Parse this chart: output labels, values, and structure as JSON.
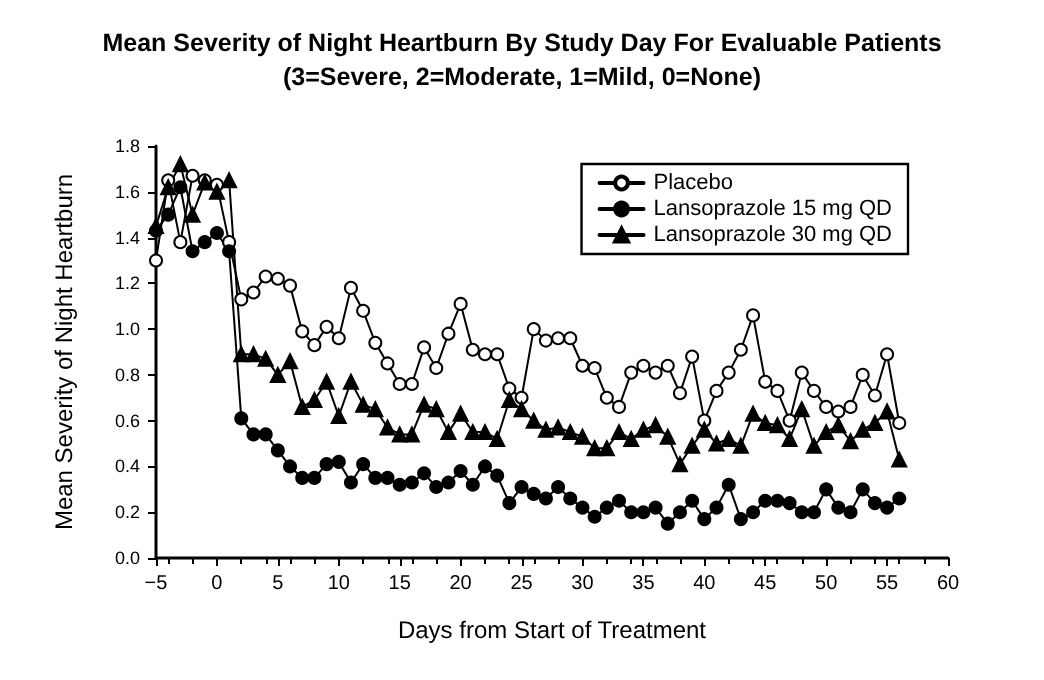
{
  "chart_data": {
    "type": "line",
    "title": "Mean Severity of Night Heartburn By Study Day For Evaluable Patients",
    "subtitle": "(3=Severe, 2=Moderate, 1=Mild, 0=None)",
    "xlabel": "Days from Start of Treatment",
    "ylabel": "Mean Severity of Night Heartburn",
    "x": [
      -5,
      -4,
      -3,
      -2,
      -1,
      0,
      1,
      2,
      3,
      4,
      5,
      6,
      7,
      8,
      9,
      10,
      11,
      12,
      13,
      14,
      15,
      16,
      17,
      18,
      19,
      20,
      21,
      22,
      23,
      24,
      25,
      26,
      27,
      28,
      29,
      30,
      31,
      32,
      33,
      34,
      35,
      36,
      37,
      38,
      39,
      40,
      41,
      42,
      43,
      44,
      45,
      46,
      47,
      48,
      49,
      50,
      51,
      52,
      53,
      54,
      55,
      56
    ],
    "series": [
      {
        "name": "Placebo",
        "color": "#000000",
        "marker": "circle",
        "values": [
          1.3,
          1.65,
          1.38,
          1.67,
          1.65,
          1.63,
          1.38,
          1.13,
          1.16,
          1.23,
          1.22,
          1.19,
          0.99,
          0.93,
          1.01,
          0.96,
          1.18,
          1.08,
          0.94,
          0.85,
          0.76,
          0.76,
          0.92,
          0.83,
          0.98,
          1.11,
          0.91,
          0.89,
          0.89,
          0.74,
          0.7,
          1.0,
          0.95,
          0.96,
          0.96,
          0.84,
          0.83,
          0.7,
          0.66,
          0.81,
          0.84,
          0.81,
          0.84,
          0.72,
          0.88,
          0.6,
          0.73,
          0.81,
          0.91,
          1.06,
          0.77,
          0.73,
          0.6,
          0.81,
          0.73,
          0.66,
          0.64,
          0.66,
          0.8,
          0.71,
          0.89,
          0.59
        ]
      },
      {
        "name": "Lansoprazole 15 mg QD",
        "color": "#000000",
        "marker": "circle",
        "values": [
          1.43,
          1.5,
          1.62,
          1.34,
          1.38,
          1.42,
          1.34,
          0.61,
          0.54,
          0.54,
          0.47,
          0.4,
          0.35,
          0.35,
          0.41,
          0.42,
          0.33,
          0.41,
          0.35,
          0.35,
          0.32,
          0.33,
          0.37,
          0.31,
          0.33,
          0.38,
          0.32,
          0.4,
          0.36,
          0.24,
          0.31,
          0.28,
          0.26,
          0.31,
          0.26,
          0.22,
          0.18,
          0.22,
          0.25,
          0.2,
          0.2,
          0.22,
          0.15,
          0.2,
          0.25,
          0.17,
          0.22,
          0.32,
          0.17,
          0.2,
          0.25,
          0.25,
          0.24,
          0.2,
          0.2,
          0.3,
          0.22,
          0.2,
          0.3,
          0.24,
          0.22,
          0.26
        ]
      },
      {
        "name": "Lansoprazole 30 mg QD",
        "color": "#000000",
        "marker": "triangle",
        "values": [
          1.45,
          1.62,
          1.72,
          1.5,
          1.64,
          1.6,
          1.65,
          0.89,
          0.89,
          0.87,
          0.8,
          0.86,
          0.66,
          0.69,
          0.77,
          0.62,
          0.77,
          0.67,
          0.65,
          0.57,
          0.54,
          0.54,
          0.67,
          0.65,
          0.55,
          0.63,
          0.55,
          0.55,
          0.52,
          0.69,
          0.65,
          0.6,
          0.56,
          0.57,
          0.55,
          0.53,
          0.48,
          0.48,
          0.55,
          0.52,
          0.56,
          0.58,
          0.53,
          0.41,
          0.49,
          0.56,
          0.5,
          0.52,
          0.49,
          0.63,
          0.59,
          0.58,
          0.52,
          0.65,
          0.49,
          0.55,
          0.58,
          0.51,
          0.56,
          0.59,
          0.64,
          0.43
        ]
      }
    ],
    "xlim": [
      -5,
      60
    ],
    "xticks": [
      {
        "value": -5,
        "label": "−5"
      },
      0,
      5,
      10,
      15,
      20,
      25,
      30,
      35,
      40,
      45,
      50,
      55,
      60
    ],
    "ylim": [
      0,
      1.8
    ],
    "yticks": [
      {
        "value": 0,
        "label": "0.0"
      },
      {
        "value": 0.2,
        "label": "0.2"
      },
      {
        "value": 0.4,
        "label": "0.4"
      },
      {
        "value": 0.6,
        "label": "0.6"
      },
      {
        "value": 0.8,
        "label": "0.8"
      },
      {
        "value": 1,
        "label": "1.0"
      },
      {
        "value": 1.2,
        "label": "1.2"
      },
      {
        "value": 1.4,
        "label": "1.4"
      },
      {
        "value": 1.6,
        "label": "1.6"
      },
      {
        "value": 1.8,
        "label": "1.8"
      }
    ],
    "grid": false,
    "legend": "top right"
  }
}
